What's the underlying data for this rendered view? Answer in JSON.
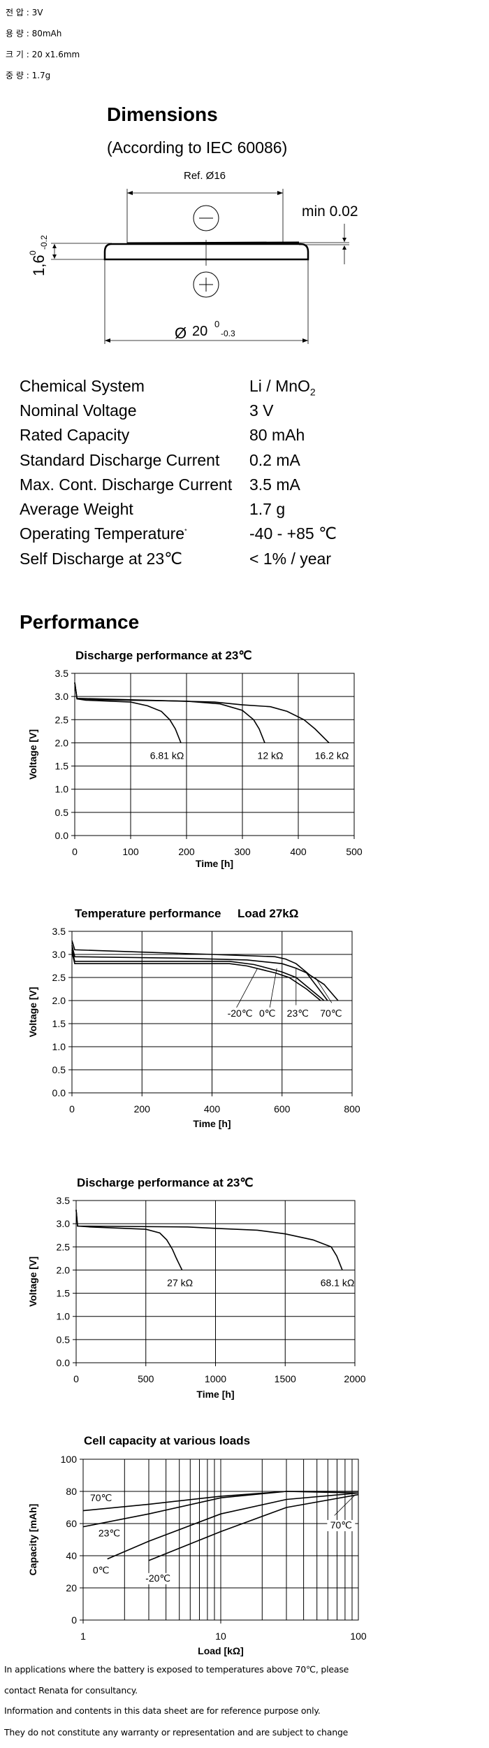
{
  "summary": [
    {
      "label": "전 압",
      "value": "3V"
    },
    {
      "label": "용 량",
      "value": "80mAh"
    },
    {
      "label": "크 기",
      "value": "20 x1.6mm"
    },
    {
      "label": "중 량",
      "value": "1.7g"
    }
  ],
  "dimensions": {
    "title": "Dimensions",
    "subtitle": "(According to IEC 60086)",
    "ref_label": "Ref. Ø16",
    "min_label": "min 0.02",
    "diameter_symbol": "Ø",
    "diameter_value": "20",
    "diameter_upper_tol": "0",
    "diameter_lower_tol": "-0.3",
    "height_value": "1,6",
    "height_upper_tol": "0",
    "height_lower_tol": "-0.2",
    "negative_symbol": "−",
    "positive_symbol": "+"
  },
  "specs": [
    {
      "label": "Chemical System",
      "value": "Li / MnO",
      "sub": "2"
    },
    {
      "label": "Nominal Voltage",
      "value": "3 V"
    },
    {
      "label": "Rated Capacity",
      "value": "80 mAh"
    },
    {
      "label": "Standard Discharge Current",
      "value": "0.2 mA"
    },
    {
      "label": "Max. Cont. Discharge Current",
      "value": "3.5 mA"
    },
    {
      "label": "Average Weight",
      "value": "1.7 g"
    },
    {
      "label": "Operating Temperature",
      "sup": "*",
      "value": "-40 - +85 ℃"
    },
    {
      "label": "Self Discharge at 23℃",
      "value": "< 1% / year"
    }
  ],
  "performance_title": "Performance",
  "chart_data": [
    {
      "type": "line",
      "title": "Discharge performance at 23℃",
      "xlabel": "Time [h]",
      "ylabel": "Voltage [V]",
      "xlim": [
        0,
        500
      ],
      "ylim": [
        0,
        3.5
      ],
      "xscale": "linear",
      "grid": true,
      "xticks": [
        0,
        100,
        200,
        300,
        400,
        500
      ],
      "xtick_labels": [
        "0",
        "100",
        "200",
        "300",
        "400",
        "500"
      ],
      "yticks": [
        0,
        0.5,
        1,
        1.5,
        2,
        2.5,
        3,
        3.5
      ],
      "ytick_labels": [
        "0.0",
        "0.5",
        "1.0",
        "1.5",
        "2.0",
        "2.5",
        "3.0",
        "3.5"
      ],
      "series": [
        {
          "name": "6.81 kΩ",
          "points": [
            [
              0,
              3.3
            ],
            [
              4,
              2.95
            ],
            [
              20,
              2.92
            ],
            [
              100,
              2.88
            ],
            [
              130,
              2.8
            ],
            [
              155,
              2.68
            ],
            [
              170,
              2.5
            ],
            [
              180,
              2.3
            ],
            [
              190,
              2.0
            ]
          ]
        },
        {
          "name": "12 kΩ",
          "points": [
            [
              0,
              3.3
            ],
            [
              4,
              2.95
            ],
            [
              50,
              2.93
            ],
            [
              200,
              2.9
            ],
            [
              260,
              2.84
            ],
            [
              300,
              2.7
            ],
            [
              320,
              2.5
            ],
            [
              330,
              2.3
            ],
            [
              340,
              2.0
            ]
          ]
        },
        {
          "name": "16.2 kΩ",
          "points": [
            [
              0,
              3.3
            ],
            [
              4,
              2.96
            ],
            [
              100,
              2.93
            ],
            [
              250,
              2.88
            ],
            [
              300,
              2.82
            ],
            [
              350,
              2.78
            ],
            [
              380,
              2.68
            ],
            [
              410,
              2.5
            ],
            [
              430,
              2.3
            ],
            [
              455,
              2.0
            ]
          ]
        }
      ],
      "annotations": [
        "6.81 kΩ",
        "12 kΩ",
        "16.2 kΩ"
      ]
    },
    {
      "type": "line",
      "title": "Temperature performance     Load 27kΩ",
      "xlabel": "Time [h]",
      "ylabel": "Voltage [V]",
      "xlim": [
        0,
        800
      ],
      "ylim": [
        0,
        3.5
      ],
      "xscale": "linear",
      "grid": true,
      "xticks": [
        0,
        200,
        400,
        600,
        800
      ],
      "xtick_labels": [
        "0",
        "200",
        "400",
        "600",
        "800"
      ],
      "yticks": [
        0,
        0.5,
        1,
        1.5,
        2,
        2.5,
        3,
        3.5
      ],
      "ytick_labels": [
        "0.0",
        "0.5",
        "1.0",
        "1.5",
        "2.0",
        "2.5",
        "3.0",
        "3.5"
      ],
      "series": [
        {
          "name": "70℃",
          "points": [
            [
              0,
              3.3
            ],
            [
              8,
              3.1
            ],
            [
              200,
              3.05
            ],
            [
              400,
              3.0
            ],
            [
              580,
              2.95
            ],
            [
              610,
              2.9
            ],
            [
              640,
              2.8
            ],
            [
              680,
              2.55
            ],
            [
              720,
              2.35
            ],
            [
              760,
              2.0
            ]
          ]
        },
        {
          "name": "23℃",
          "points": [
            [
              0,
              3.2
            ],
            [
              8,
              2.95
            ],
            [
              300,
              2.92
            ],
            [
              500,
              2.88
            ],
            [
              600,
              2.8
            ],
            [
              640,
              2.7
            ],
            [
              670,
              2.6
            ],
            [
              700,
              2.3
            ],
            [
              730,
              2.0
            ]
          ]
        },
        {
          "name": "0℃",
          "points": [
            [
              0,
              3.1
            ],
            [
              8,
              2.85
            ],
            [
              450,
              2.85
            ],
            [
              520,
              2.78
            ],
            [
              600,
              2.62
            ],
            [
              640,
              2.5
            ],
            [
              680,
              2.25
            ],
            [
              720,
              2.0
            ]
          ]
        },
        {
          "name": "-20℃",
          "points": [
            [
              0,
              3.05
            ],
            [
              8,
              2.8
            ],
            [
              450,
              2.8
            ],
            [
              500,
              2.75
            ],
            [
              580,
              2.6
            ],
            [
              620,
              2.5
            ],
            [
              670,
              2.25
            ],
            [
              710,
              2.0
            ]
          ]
        }
      ],
      "annotations": [
        "-20℃",
        "0℃",
        "23℃",
        "70℃"
      ]
    },
    {
      "type": "line",
      "title": "Discharge performance at 23℃",
      "xlabel": "Time [h]",
      "ylabel": "Voltage [V]",
      "xlim": [
        0,
        2000
      ],
      "ylim": [
        0,
        3.5
      ],
      "xscale": "linear",
      "grid": true,
      "xticks": [
        0,
        500,
        1000,
        1500,
        2000
      ],
      "xtick_labels": [
        "0",
        "500",
        "1000",
        "1500",
        "2000"
      ],
      "yticks": [
        0,
        0.5,
        1,
        1.5,
        2,
        2.5,
        3,
        3.5
      ],
      "ytick_labels": [
        "0.0",
        "0.5",
        "1.0",
        "1.5",
        "2.0",
        "2.5",
        "3.0",
        "3.5"
      ],
      "series": [
        {
          "name": "27 kΩ",
          "points": [
            [
              0,
              3.3
            ],
            [
              10,
              2.95
            ],
            [
              100,
              2.93
            ],
            [
              500,
              2.88
            ],
            [
              600,
              2.8
            ],
            [
              650,
              2.65
            ],
            [
              690,
              2.45
            ],
            [
              720,
              2.25
            ],
            [
              760,
              2.0
            ]
          ]
        },
        {
          "name": "68.1 kΩ",
          "points": [
            [
              0,
              3.3
            ],
            [
              10,
              2.95
            ],
            [
              800,
              2.93
            ],
            [
              1000,
              2.9
            ],
            [
              1300,
              2.86
            ],
            [
              1500,
              2.78
            ],
            [
              1700,
              2.65
            ],
            [
              1830,
              2.5
            ],
            [
              1870,
              2.3
            ],
            [
              1910,
              2.0
            ]
          ]
        }
      ],
      "annotations": [
        "27 kΩ",
        "68.1 kΩ"
      ]
    },
    {
      "type": "line",
      "title": "Cell capacity at various loads",
      "xlabel": "Load [kΩ]",
      "ylabel": "Capacity [mAh]",
      "xlim": [
        1,
        100
      ],
      "ylim": [
        0,
        100
      ],
      "xscale": "log",
      "grid": true,
      "xticks": [
        1,
        10,
        100
      ],
      "xtick_labels": [
        "1",
        "10",
        "100"
      ],
      "yticks": [
        0,
        20,
        40,
        60,
        80,
        100
      ],
      "ytick_labels": [
        "0",
        "20",
        "40",
        "60",
        "80",
        "100"
      ],
      "series": [
        {
          "name": "70℃",
          "points": [
            [
              1,
              68
            ],
            [
              3,
              72
            ],
            [
              10,
              77
            ],
            [
              30,
              80
            ],
            [
              100,
              80
            ]
          ]
        },
        {
          "name": "23℃",
          "points": [
            [
              1,
              58
            ],
            [
              3,
              66
            ],
            [
              10,
              76
            ],
            [
              30,
              80
            ],
            [
              100,
              79
            ]
          ]
        },
        {
          "name": "0℃",
          "points": [
            [
              1.5,
              38
            ],
            [
              3,
              49
            ],
            [
              10,
              66
            ],
            [
              30,
              75
            ],
            [
              100,
              79
            ]
          ]
        },
        {
          "name": "-20℃",
          "points": [
            [
              3,
              37
            ],
            [
              10,
              55
            ],
            [
              30,
              70
            ],
            [
              100,
              78
            ]
          ]
        }
      ],
      "annotations": [
        "70℃",
        "23℃",
        "0℃",
        "-20℃",
        "70℃"
      ]
    }
  ],
  "footer": [
    "In applications where the battery is exposed to temperatures above 70℃, please",
    "contact Renata for consultancy.",
    "Information and contents in this data sheet are for reference purpose only.",
    "They do not constitute any warranty or representation and are subject to change"
  ]
}
